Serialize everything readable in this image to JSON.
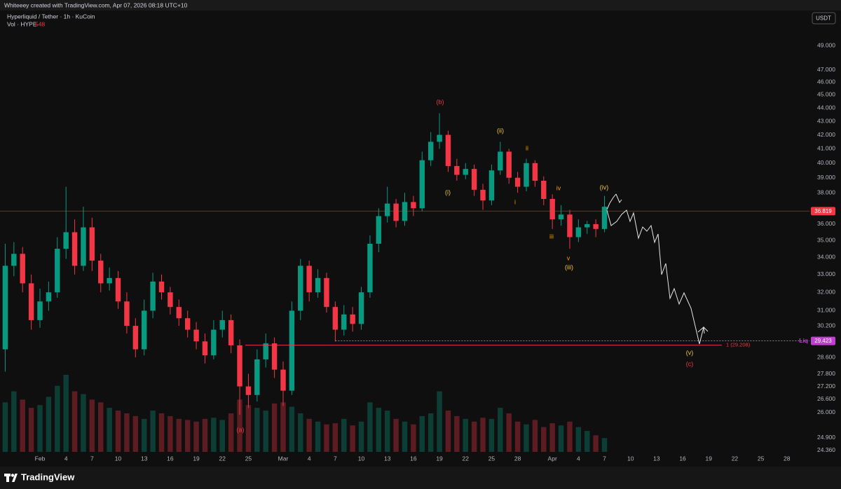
{
  "header": {
    "author_line": "Whiteeey created with TradingView.com, Apr 07, 2026 08:18 UTC+10",
    "symbol_line": "Hyperliquid / Tether · 1h · KuCoin",
    "volume_label": "Vol · HYPE",
    "volume_value": "548"
  },
  "footer": {
    "brand": "TradingView"
  },
  "chart_data": {
    "type": "candlestick",
    "log_scale": true,
    "grid": false,
    "currency": "USDT",
    "up_color": "#089981",
    "down_color": "#f23645",
    "x": [
      -4,
      -3,
      -2,
      -1,
      0,
      1,
      2,
      3,
      4,
      5,
      6,
      7,
      8,
      9,
      10,
      11,
      12,
      13,
      14,
      15,
      16,
      17,
      18,
      19,
      20,
      21,
      22,
      23,
      24,
      25,
      26,
      27,
      28,
      29,
      30,
      31,
      32,
      33,
      34,
      35,
      36,
      37,
      38,
      39,
      40,
      41,
      42,
      43,
      44,
      45,
      46,
      47,
      48,
      49,
      50,
      51,
      52,
      53,
      54,
      55,
      56,
      57,
      58,
      59,
      60,
      61,
      62,
      63,
      64,
      65
    ],
    "open": [
      29.0,
      33.5,
      34.2,
      32.5,
      30.5,
      31.5,
      32.0,
      34.5,
      35.5,
      33.5,
      35.8,
      33.8,
      32.5,
      32.8,
      31.5,
      30.2,
      29.0,
      31.0,
      32.6,
      32.0,
      31.2,
      30.6,
      30.0,
      29.4,
      28.7,
      30.0,
      30.5,
      29.2,
      27.2,
      26.8,
      28.5,
      29.3,
      28.0,
      27.0,
      31.0,
      33.5,
      32.0,
      32.8,
      31.2,
      30.0,
      30.8,
      30.3,
      32.0,
      34.8,
      36.5,
      37.3,
      36.2,
      37.4,
      37.0,
      40.2,
      41.5,
      42.0,
      39.8,
      39.2,
      39.6,
      38.2,
      37.5,
      39.5,
      40.8,
      39.0,
      38.4,
      40.0,
      38.8,
      37.6,
      36.3,
      36.6,
      35.2,
      35.8,
      36.0,
      35.7
    ],
    "high": [
      34.8,
      34.9,
      34.6,
      33.0,
      32.2,
      32.6,
      35.2,
      38.4,
      36.3,
      37.1,
      36.4,
      34.2,
      33.4,
      33.2,
      32.0,
      30.6,
      31.6,
      33.1,
      33.0,
      32.3,
      31.6,
      31.0,
      30.4,
      29.8,
      30.5,
      31.0,
      30.8,
      29.5,
      27.8,
      29.0,
      29.8,
      29.6,
      28.4,
      31.5,
      33.9,
      33.8,
      33.3,
      33.1,
      31.5,
      31.3,
      31.2,
      32.3,
      35.3,
      37.0,
      38.4,
      37.6,
      38.0,
      37.8,
      40.8,
      42.2,
      43.6,
      42.3,
      40.3,
      40.0,
      39.9,
      38.6,
      39.9,
      41.5,
      41.0,
      39.4,
      40.3,
      40.2,
      39.1,
      37.9,
      37.2,
      36.9,
      36.3,
      36.2,
      36.3,
      37.8
    ],
    "low": [
      27.9,
      32.9,
      32.0,
      30.0,
      30.1,
      31.0,
      31.7,
      33.9,
      33.0,
      33.2,
      33.2,
      32.0,
      32.1,
      31.1,
      29.8,
      28.6,
      28.7,
      30.6,
      31.6,
      30.8,
      30.2,
      29.6,
      29.0,
      28.3,
      28.5,
      29.6,
      28.8,
      25.9,
      26.2,
      26.5,
      28.1,
      27.6,
      26.3,
      26.8,
      30.5,
      31.5,
      31.7,
      30.9,
      29.4,
      29.7,
      29.9,
      30.0,
      31.7,
      34.3,
      36.1,
      35.8,
      35.9,
      36.5,
      36.8,
      39.8,
      41.0,
      39.4,
      38.8,
      38.9,
      37.8,
      36.9,
      37.2,
      39.2,
      38.6,
      38.0,
      38.1,
      38.4,
      37.2,
      35.7,
      35.9,
      34.5,
      34.9,
      35.4,
      35.2,
      35.5
    ],
    "close": [
      33.5,
      34.2,
      32.5,
      30.5,
      31.5,
      32.0,
      34.5,
      35.5,
      33.5,
      35.8,
      33.8,
      32.5,
      32.8,
      31.5,
      30.2,
      29.0,
      31.0,
      32.6,
      32.0,
      31.2,
      30.6,
      30.0,
      29.4,
      28.7,
      30.0,
      30.5,
      29.2,
      27.2,
      26.8,
      28.5,
      29.3,
      28.0,
      27.0,
      31.0,
      33.5,
      32.0,
      32.8,
      31.2,
      30.0,
      30.8,
      30.3,
      32.0,
      34.8,
      36.5,
      37.3,
      36.2,
      37.4,
      37.0,
      40.2,
      41.5,
      42.0,
      39.8,
      39.2,
      39.6,
      38.2,
      37.5,
      39.5,
      40.8,
      39.0,
      38.4,
      40.0,
      38.8,
      37.6,
      36.3,
      36.6,
      35.2,
      35.8,
      36.0,
      35.7,
      37.1
    ],
    "volume": [
      90,
      110,
      95,
      80,
      85,
      100,
      120,
      140,
      110,
      105,
      95,
      90,
      80,
      75,
      70,
      65,
      60,
      75,
      70,
      65,
      60,
      58,
      55,
      60,
      62,
      58,
      70,
      95,
      85,
      80,
      75,
      88,
      90,
      82,
      70,
      60,
      55,
      50,
      52,
      60,
      48,
      55,
      90,
      80,
      75,
      60,
      55,
      50,
      65,
      70,
      110,
      75,
      65,
      60,
      55,
      62,
      60,
      80,
      70,
      55,
      50,
      58,
      45,
      52,
      48,
      55,
      45,
      38,
      30,
      25
    ],
    "xlim": [
      -4.6,
      88.6
    ],
    "xticks": [
      {
        "value": 0,
        "label": "Feb"
      },
      {
        "value": 3,
        "label": "4"
      },
      {
        "value": 6,
        "label": "7"
      },
      {
        "value": 9,
        "label": "10"
      },
      {
        "value": 12,
        "label": "13"
      },
      {
        "value": 15,
        "label": "16"
      },
      {
        "value": 18,
        "label": "19"
      },
      {
        "value": 21,
        "label": "22"
      },
      {
        "value": 24,
        "label": "25"
      },
      {
        "value": 28,
        "label": "Mar"
      },
      {
        "value": 31,
        "label": "4"
      },
      {
        "value": 34,
        "label": "7"
      },
      {
        "value": 37,
        "label": "10"
      },
      {
        "value": 40,
        "label": "13"
      },
      {
        "value": 43,
        "label": "16"
      },
      {
        "value": 46,
        "label": "19"
      },
      {
        "value": 49,
        "label": "22"
      },
      {
        "value": 52,
        "label": "25"
      },
      {
        "value": 55,
        "label": "28"
      },
      {
        "value": 59,
        "label": "Apr"
      },
      {
        "value": 62,
        "label": "4"
      },
      {
        "value": 65,
        "label": "7"
      },
      {
        "value": 68,
        "label": "10"
      },
      {
        "value": 71,
        "label": "13"
      },
      {
        "value": 74,
        "label": "16"
      },
      {
        "value": 77,
        "label": "19"
      },
      {
        "value": 80,
        "label": "22"
      },
      {
        "value": 83,
        "label": "25"
      },
      {
        "value": 86,
        "label": "28"
      }
    ],
    "ylim": [
      24.0,
      52.0
    ],
    "yticks": [
      {
        "value": 49,
        "label": "49.000"
      },
      {
        "value": 47,
        "label": "47.000"
      },
      {
        "value": 46,
        "label": "46.000"
      },
      {
        "value": 45,
        "label": "45.000"
      },
      {
        "value": 44,
        "label": "44.000"
      },
      {
        "value": 43,
        "label": "43.000"
      },
      {
        "value": 42,
        "label": "42.000"
      },
      {
        "value": 41,
        "label": "41.000"
      },
      {
        "value": 40,
        "label": "40.000"
      },
      {
        "value": 39,
        "label": "39.000"
      },
      {
        "value": 38,
        "label": "38.000"
      },
      {
        "value": 36,
        "label": "36.000"
      },
      {
        "value": 35,
        "label": "35.000"
      },
      {
        "value": 34,
        "label": "34.000"
      },
      {
        "value": 33,
        "label": "33.000"
      },
      {
        "value": 32,
        "label": "32.000"
      },
      {
        "value": 31,
        "label": "31.000"
      },
      {
        "value": 30.2,
        "label": "30.200"
      },
      {
        "value": 28.6,
        "label": "28.600"
      },
      {
        "value": 27.8,
        "label": "27.800"
      },
      {
        "value": 27.2,
        "label": "27.200"
      },
      {
        "value": 26.6,
        "label": "26.600"
      },
      {
        "value": 26,
        "label": "26.000"
      },
      {
        "value": 24.9,
        "label": "24.900"
      },
      {
        "value": 24.36,
        "label": "24.360"
      }
    ],
    "price_lines": [
      {
        "value": 36.819,
        "color": "#f23645"
      },
      {
        "value": 29.423,
        "color": "#c03fd0",
        "name": "Liq"
      }
    ],
    "fib_level": {
      "value": 29.208,
      "label": "1 (29.208)",
      "color": "#f23645"
    },
    "annotations": [
      {
        "text": "(b)",
        "color": "#f23645"
      },
      {
        "text": "(i)",
        "color": "#f5c542"
      },
      {
        "text": "(ii)",
        "color": "#f5c542"
      },
      {
        "text": "ii",
        "color": "#ff9800"
      },
      {
        "text": "i",
        "color": "#ff9800"
      },
      {
        "text": "iv",
        "color": "#ff9800"
      },
      {
        "text": "iii",
        "color": "#ff9800"
      },
      {
        "text": "v",
        "color": "#ff9800"
      },
      {
        "text": "(iii)",
        "color": "#f5c542"
      },
      {
        "text": "(iv)",
        "color": "#f5c542"
      },
      {
        "text": "(v)",
        "color": "#f5c542"
      },
      {
        "text": "(c)",
        "color": "#f23645"
      },
      {
        "text": "(a)",
        "color": "#f23645"
      }
    ]
  }
}
